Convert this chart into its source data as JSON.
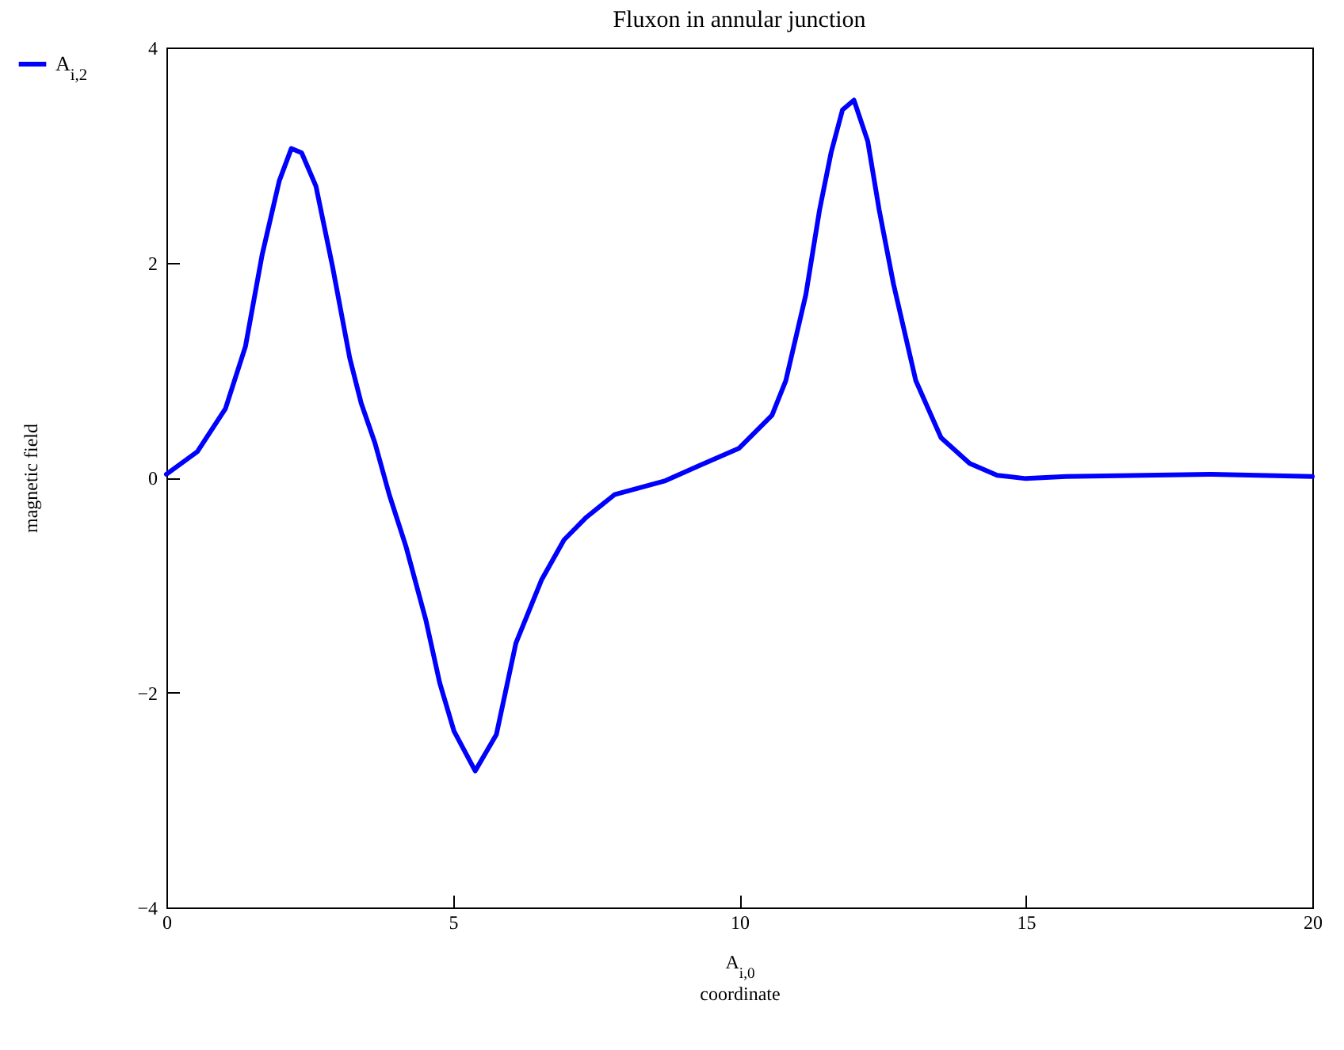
{
  "chart_data": {
    "type": "line",
    "title": "Fluxon in annular junction",
    "xlabel": "A$_{i,0}$\ncoordinate",
    "ylabel": "magnetic field",
    "x": [
      0,
      0.54,
      1.03,
      1.38,
      1.67,
      1.97,
      2.18,
      2.36,
      2.61,
      2.9,
      3.2,
      3.4,
      3.64,
      3.89,
      4.18,
      4.53,
      4.77,
      5.02,
      5.39,
      5.76,
      6.1,
      6.55,
      6.94,
      7.33,
      7.82,
      8.71,
      9.3,
      9.99,
      10.57,
      10.81,
      11.16,
      11.4,
      11.6,
      11.8,
      12.0,
      12.24,
      12.44,
      12.69,
      13.08,
      13.52,
      14.02,
      14.5,
      15,
      15.7,
      18.25,
      20
    ],
    "series": [
      {
        "name": "A$_{i,2}$",
        "color": "#0000ff",
        "values": [
          0.03,
          0.24,
          0.64,
          1.22,
          2.07,
          2.76,
          3.06,
          3.02,
          2.71,
          1.96,
          1.11,
          0.69,
          0.32,
          -0.16,
          -0.64,
          -1.33,
          -1.91,
          -2.36,
          -2.73,
          -2.39,
          -1.54,
          -0.95,
          -0.58,
          -0.37,
          -0.16,
          -0.03,
          0.11,
          0.27,
          0.58,
          0.9,
          1.7,
          2.49,
          3.02,
          3.42,
          3.51,
          3.13,
          2.49,
          1.8,
          0.9,
          0.37,
          0.13,
          0.02,
          -0.01,
          0.01,
          0.03,
          0.01
        ]
      }
    ],
    "xlim": [
      0,
      20
    ],
    "xticks": [
      0,
      5,
      10,
      15,
      20
    ],
    "ylim": [
      -4,
      4
    ],
    "yticks": [
      -4,
      -2,
      0,
      2,
      4
    ],
    "grid": false,
    "legend": "left",
    "line_style": "solid",
    "marker": "none"
  }
}
